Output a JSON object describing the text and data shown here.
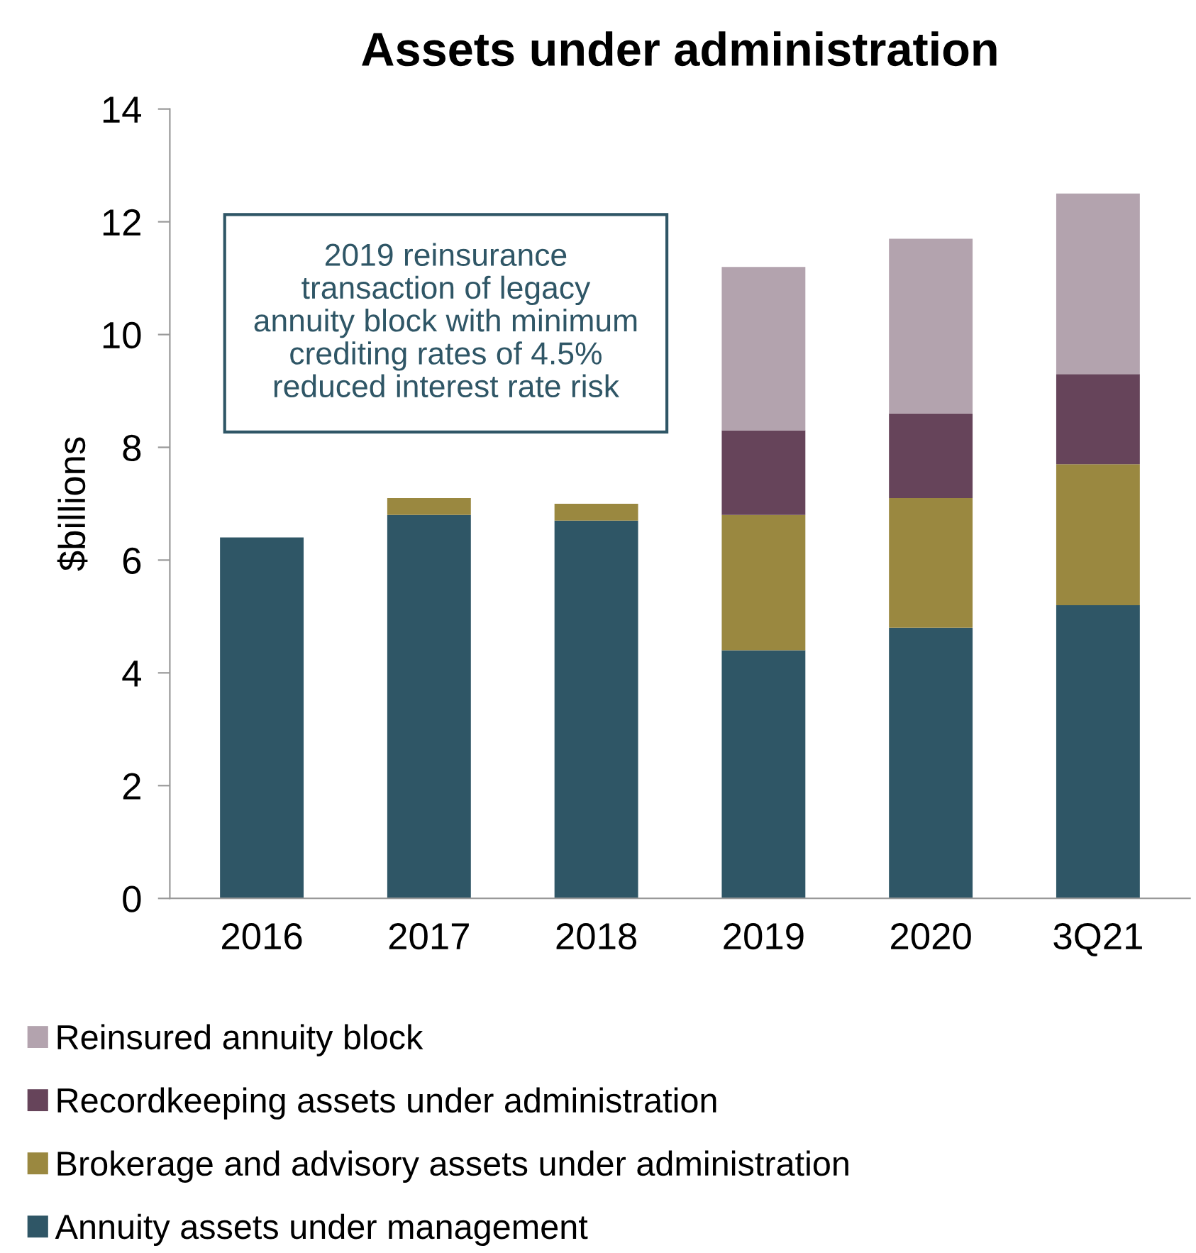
{
  "chart_data": {
    "type": "bar",
    "title": "Assets under administration",
    "ylabel": "$billions",
    "categories": [
      "2016",
      "2017",
      "2018",
      "2019",
      "2020",
      "3Q21"
    ],
    "stacked": true,
    "series": [
      {
        "name": "Annuity assets under management",
        "color": "#2f5666",
        "values": [
          6.4,
          6.8,
          6.7,
          4.4,
          4.8,
          5.2
        ]
      },
      {
        "name": "Brokerage and advisory assets under administration",
        "color": "#9a8840",
        "values": [
          null,
          0.3,
          0.3,
          2.4,
          2.3,
          2.5
        ]
      },
      {
        "name": "Recordkeeping assets under administration",
        "color": "#66445a",
        "values": [
          null,
          null,
          null,
          1.5,
          1.5,
          1.6
        ]
      },
      {
        "name": "Reinsured annuity block",
        "color": "#b3a3ae",
        "values": [
          null,
          null,
          null,
          2.9,
          3.1,
          3.2
        ]
      }
    ],
    "ylim": [
      0,
      14
    ],
    "yticks": [
      0,
      2,
      4,
      6,
      8,
      10,
      12,
      14
    ],
    "annotations": [
      "2019 reinsurance\ntransaction of legacy\nannuity block with minimum\ncrediting rates of 4.5%\nreduced interest rate risk"
    ],
    "legend": "bottom",
    "grid": false
  }
}
